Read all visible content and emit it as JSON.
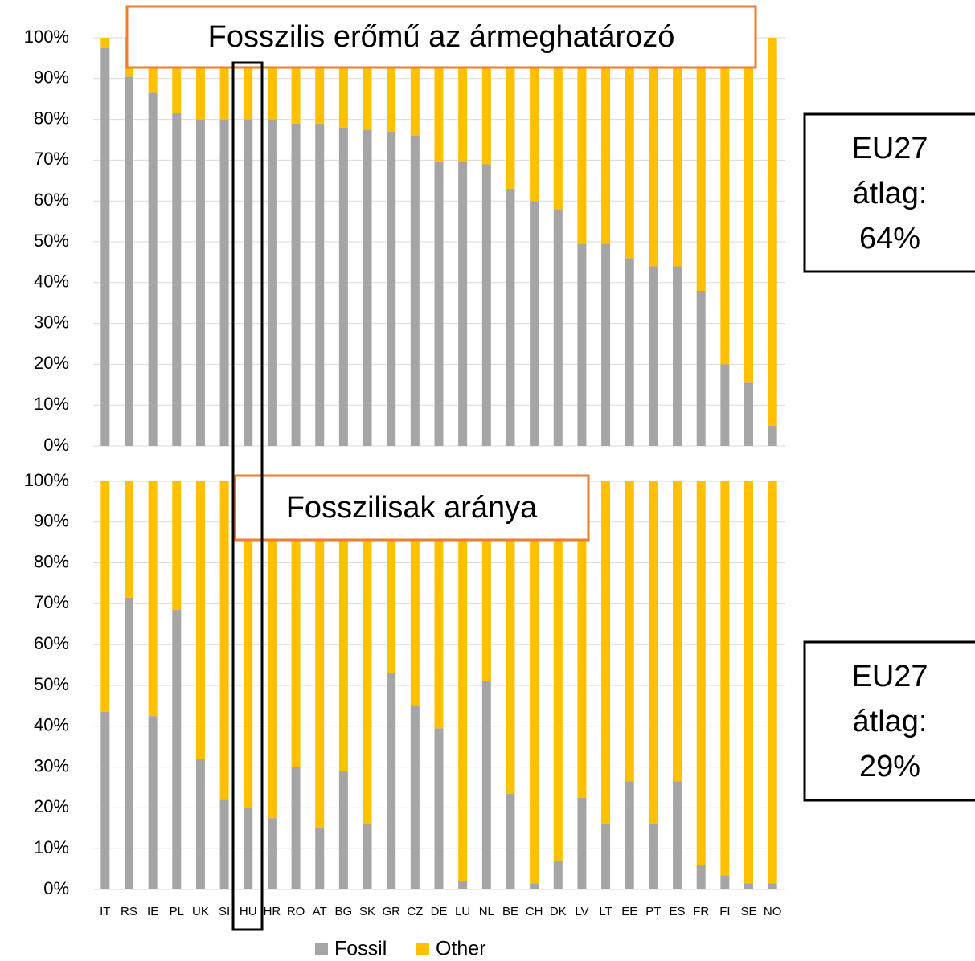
{
  "chart_data": [
    {
      "type": "bar",
      "stacked": true,
      "title": "Fosszilis erőmű az ármeghatározó",
      "annotation_lines": [
        "EU27",
        "átlag:",
        "64%"
      ],
      "series": [
        {
          "color": "#a5a5a5",
          "values": [
            97.5,
            90.5,
            86.5,
            81.5,
            80,
            80,
            80,
            80,
            79,
            79,
            78,
            77.5,
            77,
            76,
            69.5,
            69.5,
            69,
            63,
            60,
            58,
            49.5,
            49.5,
            46,
            44,
            44,
            38,
            20,
            15.5,
            5
          ]
        },
        {
          "color": "#ffc000",
          "values": [
            2.5,
            9.5,
            13.5,
            18.5,
            20,
            20,
            20,
            20,
            21,
            21,
            22,
            22.5,
            23,
            24,
            30.5,
            30.5,
            31,
            37,
            40,
            42,
            50.5,
            50.5,
            54,
            56,
            56,
            62,
            80,
            84.5,
            95
          ]
        }
      ],
      "ylim": [
        0,
        100
      ],
      "yticks": [
        {
          "value": 0,
          "label": "0%"
        },
        {
          "value": 10,
          "label": "10%"
        },
        {
          "value": 20,
          "label": "20%"
        },
        {
          "value": 30,
          "label": "30%"
        },
        {
          "value": 40,
          "label": "40%"
        },
        {
          "value": 50,
          "label": "50%"
        },
        {
          "value": 60,
          "label": "60%"
        },
        {
          "value": 70,
          "label": "70%"
        },
        {
          "value": 80,
          "label": "80%"
        },
        {
          "value": 90,
          "label": "90%"
        },
        {
          "value": 100,
          "label": "100%"
        }
      ],
      "grid": true
    },
    {
      "type": "bar",
      "stacked": true,
      "title": "Fosszilisak aránya",
      "annotation_lines": [
        "EU27",
        "átlag:",
        "29%"
      ],
      "categories": [
        "IT",
        "RS",
        "IE",
        "PL",
        "UK",
        "SI",
        "HU",
        "HR",
        "RO",
        "AT",
        "BG",
        "SK",
        "GR",
        "CZ",
        "DE",
        "LU",
        "NL",
        "BE",
        "CH",
        "DK",
        "LV",
        "LT",
        "EE",
        "PT",
        "ES",
        "FR",
        "FI",
        "SE",
        "NO"
      ],
      "series": [
        {
          "name": "Fossil",
          "color": "#a5a5a5",
          "values": [
            43.5,
            71.5,
            42.5,
            68.5,
            32,
            22,
            20,
            17.5,
            30,
            15,
            29,
            16,
            53,
            45,
            39.5,
            2,
            51,
            23.5,
            1.5,
            7,
            22.5,
            16,
            26.5,
            16,
            26.5,
            6,
            3.5,
            1.5,
            1.5
          ]
        },
        {
          "name": "Other",
          "color": "#ffc000",
          "values": [
            56.5,
            28.5,
            57.5,
            31.5,
            68,
            78,
            80,
            82.5,
            70,
            85,
            71,
            84,
            47,
            55,
            60.5,
            98,
            49,
            76.5,
            98.5,
            93,
            77.5,
            84,
            73.5,
            84,
            73.5,
            94,
            96.5,
            98.5,
            98.5
          ]
        }
      ],
      "ylim": [
        0,
        100
      ],
      "yticks": [
        {
          "value": 0,
          "label": "0%"
        },
        {
          "value": 10,
          "label": "10%"
        },
        {
          "value": 20,
          "label": "20%"
        },
        {
          "value": 30,
          "label": "30%"
        },
        {
          "value": 40,
          "label": "40%"
        },
        {
          "value": 50,
          "label": "50%"
        },
        {
          "value": 60,
          "label": "60%"
        },
        {
          "value": 70,
          "label": "70%"
        },
        {
          "value": 80,
          "label": "80%"
        },
        {
          "value": 90,
          "label": "90%"
        },
        {
          "value": 100,
          "label": "100%"
        }
      ],
      "grid": true,
      "legend": "bottom"
    }
  ]
}
